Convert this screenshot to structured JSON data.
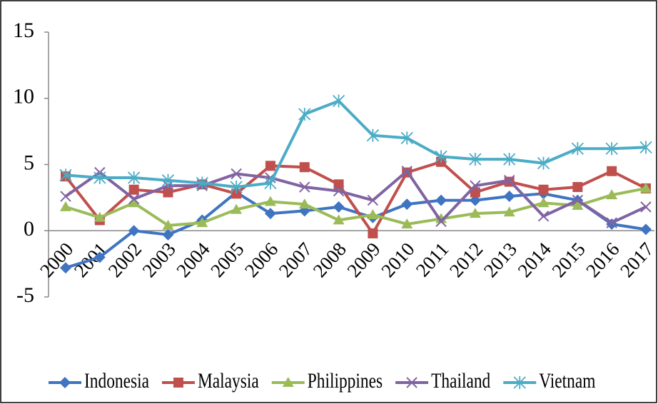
{
  "chart_data": {
    "type": "line",
    "categories": [
      "2000",
      "2001",
      "2002",
      "2003",
      "2004",
      "2005",
      "2006",
      "2007",
      "2008",
      "2009",
      "2010",
      "2011",
      "2012",
      "2013",
      "2014",
      "2015",
      "2016",
      "2017"
    ],
    "series": [
      {
        "name": "Indonesia",
        "color": "#3f74c2",
        "marker": "diamond",
        "values": [
          -2.8,
          -2.0,
          0,
          -0.3,
          0.8,
          2.9,
          1.3,
          1.5,
          1.8,
          1.0,
          2.0,
          2.3,
          2.3,
          2.6,
          2.8,
          2.3,
          0.5,
          0.1
        ]
      },
      {
        "name": "Malaysia",
        "color": "#c0504d",
        "marker": "square",
        "values": [
          4.1,
          0.8,
          3.1,
          2.9,
          3.5,
          2.8,
          4.9,
          4.8,
          3.5,
          -0.2,
          4.4,
          5.2,
          2.9,
          3.7,
          3.1,
          3.3,
          4.5,
          3.2
        ]
      },
      {
        "name": "Philippines",
        "color": "#9bbb59",
        "marker": "triangle",
        "values": [
          1.8,
          1.0,
          2.1,
          0.4,
          0.6,
          1.6,
          2.2,
          2.0,
          0.8,
          1.2,
          0.5,
          0.9,
          1.3,
          1.4,
          2.1,
          1.9,
          2.7,
          3.2
        ]
      },
      {
        "name": "Thailand",
        "color": "#8064a2",
        "marker": "x",
        "values": [
          2.6,
          4.4,
          2.4,
          3.4,
          3.4,
          4.3,
          4.0,
          3.3,
          3.0,
          2.3,
          4.5,
          0.7,
          3.4,
          3.8,
          1.1,
          2.3,
          0.6,
          1.8
        ]
      },
      {
        "name": "Vietnam",
        "color": "#4bacc6",
        "marker": "star",
        "values": [
          4.2,
          4.0,
          4.0,
          3.8,
          3.6,
          3.3,
          3.6,
          8.8,
          9.8,
          7.2,
          7.0,
          5.6,
          5.4,
          5.4,
          5.1,
          6.2,
          6.2,
          6.3
        ]
      }
    ],
    "ylim": [
      -5,
      15
    ],
    "yticks": [
      -5,
      0,
      5,
      10,
      15
    ],
    "grid": false,
    "legend": "bottom"
  }
}
